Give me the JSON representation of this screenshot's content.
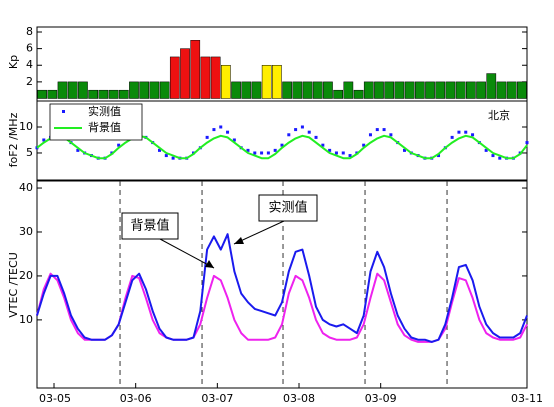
{
  "chart_data": [
    {
      "type": "bar",
      "y_label": "Kp",
      "x": [
        0,
        3,
        6,
        9,
        12,
        15,
        18,
        21,
        24,
        27,
        30,
        33,
        36,
        39,
        42,
        45,
        48,
        51,
        54,
        57,
        60,
        63,
        66,
        69,
        72,
        75,
        78,
        81,
        84,
        87,
        90,
        93,
        96,
        99,
        102,
        105,
        108,
        111,
        114,
        117,
        120,
        123,
        126,
        129,
        132,
        135,
        138,
        141
      ],
      "values": [
        1,
        1,
        2,
        2,
        2,
        1,
        1,
        1,
        1,
        2,
        2,
        2,
        2,
        5,
        6,
        7,
        5,
        5,
        4,
        2,
        2,
        2,
        4,
        4,
        2,
        2,
        2,
        2,
        2,
        1,
        2,
        1,
        2,
        2,
        2,
        2,
        2,
        2,
        2,
        2,
        2,
        2,
        2,
        2,
        3,
        2,
        2,
        2
      ],
      "colors": [
        "#0a8a0a",
        "#0a8a0a",
        "#0a8a0a",
        "#0a8a0a",
        "#0a8a0a",
        "#0a8a0a",
        "#0a8a0a",
        "#0a8a0a",
        "#0a8a0a",
        "#0a8a0a",
        "#0a8a0a",
        "#0a8a0a",
        "#0a8a0a",
        "#ee1111",
        "#ee1111",
        "#ee1111",
        "#ee1111",
        "#ee1111",
        "#ffee00",
        "#0a8a0a",
        "#0a8a0a",
        "#0a8a0a",
        "#ffee00",
        "#ffee00",
        "#0a8a0a",
        "#0a8a0a",
        "#0a8a0a",
        "#0a8a0a",
        "#0a8a0a",
        "#0a8a0a",
        "#0a8a0a",
        "#0a8a0a",
        "#0a8a0a",
        "#0a8a0a",
        "#0a8a0a",
        "#0a8a0a",
        "#0a8a0a",
        "#0a8a0a",
        "#0a8a0a",
        "#0a8a0a",
        "#0a8a0a",
        "#0a8a0a",
        "#0a8a0a",
        "#0a8a0a",
        "#0a8a0a",
        "#0a8a0a",
        "#0a8a0a",
        "#0a8a0a"
      ],
      "xlim": [
        0,
        144
      ],
      "ylim": [
        -0.3,
        8.6
      ],
      "yticks": [
        2,
        4,
        6,
        8
      ]
    },
    {
      "type": "line",
      "y_label": "foF2 /MHz",
      "annotation": "北京",
      "x": [
        0,
        2,
        4,
        6,
        8,
        10,
        12,
        14,
        16,
        18,
        20,
        22,
        24,
        26,
        28,
        30,
        32,
        34,
        36,
        38,
        40,
        42,
        44,
        46,
        48,
        50,
        52,
        54,
        56,
        58,
        60,
        62,
        64,
        66,
        68,
        70,
        72,
        74,
        76,
        78,
        80,
        82,
        84,
        86,
        88,
        90,
        92,
        94,
        96,
        98,
        100,
        102,
        104,
        106,
        108,
        110,
        112,
        114,
        116,
        118,
        120,
        122,
        124,
        126,
        128,
        130,
        132,
        134,
        136,
        138,
        140,
        142,
        144
      ],
      "series": [
        {
          "name": "实测值",
          "color": "#1a1aff",
          "style": "markers",
          "values": [
            6,
            7.5,
            8,
            8.5,
            8,
            7,
            5.5,
            5,
            4.5,
            4,
            4,
            5,
            6.5,
            8,
            9,
            9,
            8,
            7,
            5.5,
            4.5,
            4,
            4,
            4,
            5,
            6,
            8,
            9.5,
            10,
            9,
            7.5,
            6,
            5.5,
            5,
            5,
            5,
            5.5,
            6.5,
            8.5,
            9.5,
            10,
            9,
            8,
            6.5,
            5.5,
            5,
            5,
            4.5,
            5,
            6.5,
            8.5,
            9.5,
            9.5,
            8.5,
            7,
            5.5,
            5,
            4.5,
            4,
            4,
            4.5,
            6,
            8,
            9,
            9,
            8.5,
            7,
            5.5,
            4.5,
            4,
            4,
            4,
            5,
            7
          ]
        },
        {
          "name": "背景值",
          "color": "#22ee22",
          "style": "line",
          "values": [
            6,
            7,
            7.8,
            8.3,
            8,
            7,
            6,
            5,
            4.5,
            4,
            4,
            4.8,
            6,
            7,
            7.8,
            8.3,
            8,
            7,
            6,
            5,
            4.5,
            4,
            4,
            4.8,
            6,
            7,
            7.8,
            8.3,
            8,
            7,
            6,
            5,
            4.5,
            4,
            4,
            4.8,
            6,
            7,
            7.8,
            8.3,
            8,
            7,
            6,
            5,
            4.5,
            4,
            4,
            4.8,
            6,
            7,
            7.8,
            8.3,
            8,
            7,
            6,
            5,
            4.5,
            4,
            4,
            4.8,
            6,
            7,
            7.8,
            8.3,
            8,
            7,
            6,
            5,
            4.5,
            4,
            4,
            4.8,
            6.5
          ]
        }
      ],
      "xlim": [
        0,
        144
      ],
      "ylim": [
        -0.2,
        15
      ],
      "yticks": [
        5,
        10
      ]
    },
    {
      "type": "line",
      "y_label": "VTEC   /TECU",
      "annotations": [
        {
          "text": "背景值"
        },
        {
          "text": "实测值"
        }
      ],
      "x": [
        0,
        2,
        4,
        6,
        8,
        10,
        12,
        14,
        16,
        18,
        20,
        22,
        24,
        26,
        28,
        30,
        32,
        34,
        36,
        38,
        40,
        42,
        44,
        46,
        48,
        50,
        52,
        54,
        56,
        58,
        60,
        62,
        64,
        66,
        68,
        70,
        72,
        74,
        76,
        78,
        80,
        82,
        84,
        86,
        88,
        90,
        92,
        94,
        96,
        98,
        100,
        102,
        104,
        106,
        108,
        110,
        112,
        114,
        116,
        118,
        120,
        122,
        124,
        126,
        128,
        130,
        132,
        134,
        136,
        138,
        140,
        142,
        144
      ],
      "series": [
        {
          "color": "#ee22ee",
          "style": "line",
          "values": [
            11,
            17,
            20.5,
            19,
            15,
            10,
            7,
            5.5,
            5.5,
            5.5,
            5.5,
            6.5,
            9,
            15,
            20,
            19.5,
            15,
            10,
            7,
            6,
            5.5,
            5.5,
            5.5,
            6,
            9,
            15,
            20,
            19,
            15,
            10,
            7,
            5.5,
            5.5,
            5.5,
            5.5,
            6,
            9,
            16,
            20,
            19,
            15,
            10,
            7,
            6,
            5.5,
            5.5,
            5.5,
            6,
            9,
            15,
            20.5,
            19,
            14,
            9,
            6.5,
            5.5,
            5,
            5,
            5,
            5.5,
            8,
            14,
            19.5,
            19,
            15,
            10,
            7,
            6,
            5.5,
            5.5,
            5.5,
            6,
            9
          ]
        },
        {
          "color": "#1a1aee",
          "style": "line",
          "values": [
            11,
            16,
            20,
            20,
            16,
            11,
            8,
            6,
            5.5,
            5.5,
            5.5,
            6.5,
            9,
            14,
            19,
            20.5,
            17,
            12,
            8,
            6,
            5.5,
            5.5,
            5.5,
            6,
            12,
            26,
            29,
            26,
            29.5,
            21,
            16,
            14,
            12.5,
            12,
            11.5,
            11,
            14,
            21,
            25.5,
            26,
            20,
            13,
            10,
            9,
            8.5,
            9,
            8,
            7,
            11,
            21,
            25.5,
            22,
            16,
            11,
            8,
            6,
            5.5,
            5.5,
            5,
            5.5,
            9,
            15,
            22,
            22.5,
            19,
            13,
            9,
            7,
            6,
            6,
            6,
            7,
            11
          ]
        }
      ],
      "vlines": [
        24.4,
        48.5,
        72.3,
        96.4,
        120.5
      ],
      "xlim": [
        0,
        144
      ],
      "ylim": [
        -5.5,
        41.6
      ],
      "yticks": [
        10,
        20,
        30,
        40
      ],
      "xticks": [
        {
          "value": 5,
          "label": "03-05"
        },
        {
          "value": 29,
          "label": "03-06"
        },
        {
          "value": 53,
          "label": "03-07"
        },
        {
          "value": 77,
          "label": "03-08"
        },
        {
          "value": 101,
          "label": "03-09"
        },
        {
          "value": 144,
          "label": "03-11"
        }
      ]
    }
  ]
}
